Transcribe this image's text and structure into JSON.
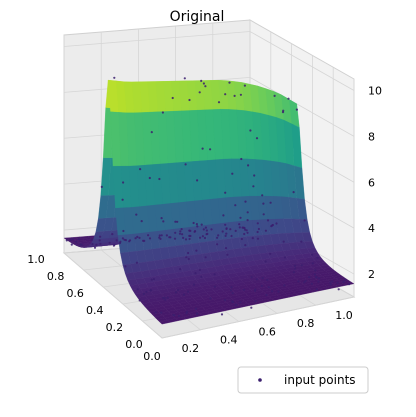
{
  "chart_data": {
    "type": "surface3d",
    "title": "Original",
    "xlabel": "",
    "ylabel": "",
    "zlabel": "",
    "x_ticks": [
      "0.0",
      "0.2",
      "0.4",
      "0.6",
      "0.8",
      "1.0"
    ],
    "y_ticks": [
      "0.0",
      "0.2",
      "0.4",
      "0.6",
      "0.8",
      "1.0"
    ],
    "z_ticks": [
      "2",
      "4",
      "6",
      "8",
      "10"
    ],
    "xlim": [
      0,
      1
    ],
    "ylim": [
      0,
      1
    ],
    "zlim": [
      1,
      10.5
    ],
    "colormap": "viridis",
    "grid": true,
    "legend": {
      "position": "lower-right",
      "entries": [
        "input points"
      ]
    },
    "series": [
      {
        "name": "input points",
        "kind": "scatter",
        "color": "#3b1f6e"
      }
    ],
    "surface_samples": {
      "x": [
        0.0,
        0.1,
        0.2,
        0.3,
        0.4,
        0.5,
        0.6,
        0.7,
        0.8,
        0.9,
        1.0
      ],
      "y_at_peak": 0.55,
      "z_peak_curve": [
        10.2,
        10.0,
        9.9,
        9.8,
        9.7,
        9.6,
        9.5,
        9.3,
        9.0,
        8.6,
        8.0
      ],
      "z_floor": 1.5
    }
  }
}
